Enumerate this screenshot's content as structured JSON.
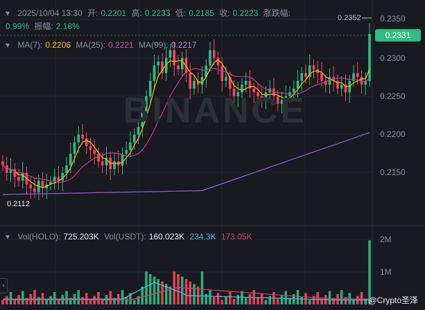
{
  "header": {
    "date": "2025/10/04 13:30",
    "open_label": "开:",
    "open": "0.2201",
    "high_label": "高:",
    "high": "0.2233",
    "low_label": "低:",
    "low": "0.2185",
    "close_label": "收:",
    "close": "0.2223",
    "change_label": "涨跌幅:",
    "change": "0.99%",
    "amplitude_label": "振幅:",
    "amplitude": "2.18%"
  },
  "ma": {
    "ma7_label": "MA(7):",
    "ma7": "0.2206",
    "ma25_label": "MA(25):",
    "ma25": "0.2221",
    "ma99_label": "MA(99):",
    "ma99": "0.2217"
  },
  "volume": {
    "vol_label": "Vol(HOLO):",
    "vol": "725.203K",
    "volu_label": "Vol(USDT):",
    "volu": "160.023K",
    "ma1": "234.3K",
    "ma2": "173.05K"
  },
  "price_axis": {
    "ticks": [
      "0.2350",
      "0.2300",
      "0.2250",
      "0.2200",
      "0.2150"
    ],
    "high_marker": "0.2352",
    "current": "0.2331",
    "low_marker": "0.2112"
  },
  "vol_axis": {
    "ticks": [
      "2M",
      "1M"
    ]
  },
  "watermark": "BINANCE",
  "source_watermark": "@Crypto圣泽",
  "colors": {
    "up": "#2ebd85",
    "down": "#f6465d",
    "ma7": "#f0b90b",
    "ma25": "#c13b8c",
    "ma99": "#8b63d6",
    "vol_ma1": "#5ab6d6",
    "vol_ma2": "#d0406a"
  }
}
